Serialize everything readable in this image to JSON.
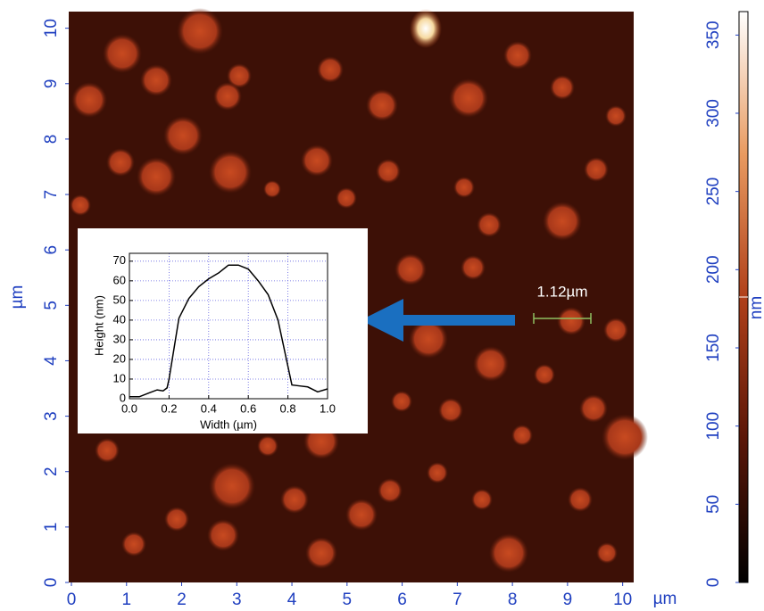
{
  "chart_data": [
    {
      "type": "image",
      "xlabel": "µm",
      "ylabel": "µm",
      "xlim": [
        0,
        10.2
      ],
      "ylim": [
        0,
        10.3
      ],
      "xticks": [
        0,
        1,
        2,
        3,
        4,
        5,
        6,
        7,
        8,
        9,
        10
      ],
      "yticks": [
        0,
        1,
        2,
        3,
        4,
        5,
        6,
        7,
        8,
        9,
        10
      ],
      "annotation": "1.12µm",
      "colorbar": {
        "label": "nm",
        "lim": [
          0,
          365
        ],
        "ticks": [
          0,
          50,
          100,
          150,
          200,
          250,
          300,
          350
        ]
      }
    },
    {
      "type": "line",
      "xlabel": "Width (µm)",
      "ylabel": "Height (nm)",
      "x": [
        0,
        0.05,
        0.1,
        0.14,
        0.17,
        0.19,
        0.2,
        0.25,
        0.3,
        0.35,
        0.4,
        0.45,
        0.5,
        0.55,
        0.6,
        0.65,
        0.7,
        0.75,
        0.82,
        0.86,
        0.9,
        0.95,
        1.0
      ],
      "series": [
        {
          "color": "#000000",
          "values": [
            1,
            1,
            3,
            4.5,
            4,
            5.5,
            10,
            41,
            51,
            57,
            61,
            64,
            68,
            68,
            66,
            60,
            53,
            40,
            7,
            6.5,
            6,
            3.5,
            5
          ]
        }
      ],
      "xlim": [
        0,
        1
      ],
      "ylim": [
        0,
        74
      ],
      "xticks": [
        {
          "value": 0,
          "label": "0.0"
        },
        {
          "value": 0.2,
          "label": "0.2"
        },
        {
          "value": 0.4,
          "label": "0.4"
        },
        {
          "value": 0.6,
          "label": "0.6"
        },
        {
          "value": 0.8,
          "label": "0.8"
        },
        {
          "value": 1,
          "label": "1.0"
        }
      ],
      "yticks": [
        0,
        10,
        20,
        30,
        40,
        50,
        60,
        70
      ],
      "grid": true
    }
  ]
}
